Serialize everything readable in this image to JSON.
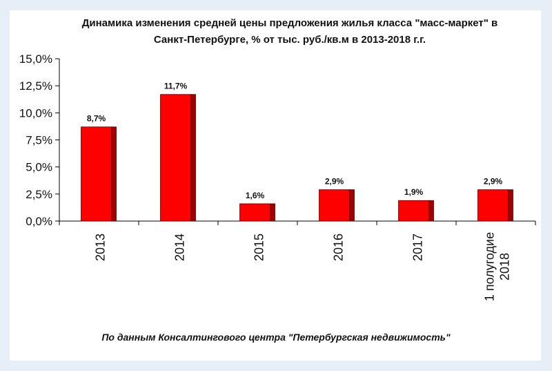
{
  "page": {
    "title": "Динамика изменения средней цены предложения жилья класса \"масс-маркет\" в Санкт-Петербурге, % от тыс. руб./кв.м в 2013-2018 г.г.",
    "source": "По данным Консалтингового центра \"Петербургская недвижимость\""
  },
  "chart_data": {
    "type": "bar",
    "title": "Динамика изменения средней цены предложения жилья класса \"масс-маркет\" в Санкт-Петербурге, % от тыс. руб./кв.м в 2013-2018 г.г.",
    "categories": [
      [
        "2013"
      ],
      [
        "2014"
      ],
      [
        "2015"
      ],
      [
        "2016"
      ],
      [
        "2017"
      ],
      [
        "1 полугодие",
        "2018"
      ]
    ],
    "values": [
      8.7,
      11.7,
      1.6,
      2.9,
      1.9,
      2.9
    ],
    "data_labels": [
      "8,7%",
      "11,7%",
      "1,6%",
      "2,9%",
      "1,9%",
      "2,9%"
    ],
    "y_ticks": [
      {
        "value": 0,
        "label": "0,0%"
      },
      {
        "value": 2.5,
        "label": "2,5%"
      },
      {
        "value": 5,
        "label": "5,0%"
      },
      {
        "value": 7.5,
        "label": "7,5%"
      },
      {
        "value": 10,
        "label": "10,0%"
      },
      {
        "value": 12.5,
        "label": "12,5%"
      },
      {
        "value": 15,
        "label": "15,0%"
      }
    ],
    "ylim": [
      0,
      15
    ],
    "xlabel": "",
    "ylabel": "",
    "grid": false,
    "legend": "none",
    "colors": {
      "bar_face": "#ff0000",
      "bar_side": "#a00000",
      "axis": "#000000"
    }
  }
}
